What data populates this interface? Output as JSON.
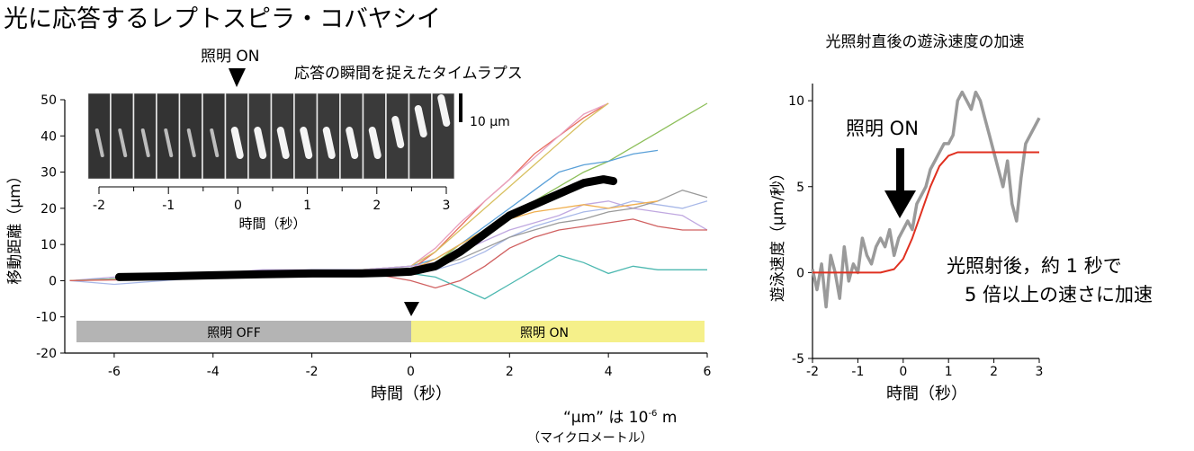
{
  "page": {
    "title": "光に応答するレプトスピラ・コバヤシイ",
    "unit_note": "“μm” は 10",
    "unit_note_exp": "-6",
    "unit_note_suffix": " m",
    "unit_note_reading": "（マイクロメートル）"
  },
  "chart_data": [
    {
      "type": "line",
      "panel": "left",
      "title": "",
      "xlabel": "時間（秒）",
      "ylabel": "移動距離（μm）",
      "xlim": [
        -7,
        6
      ],
      "ylim": [
        -20,
        50
      ],
      "xticks": [
        "-6",
        "-4",
        "-2",
        "0",
        "2",
        "4",
        "6"
      ],
      "yticks": [
        "-20",
        "-10",
        "0",
        "10",
        "20",
        "30",
        "40",
        "50"
      ],
      "grid": false,
      "annotations": {
        "off_bar_label": "照明 OFF",
        "on_bar_label": "照明 ON",
        "light_on_marker_label": "照明 ON",
        "timelapse_caption": "応答の瞬間を捉えたタイムラプス",
        "timelapse_scalebar": "10 μm",
        "timelapse_xlabel": "時間（秒）",
        "timelapse_ticks": [
          "-2",
          "-1",
          "0",
          "1",
          "2",
          "3"
        ]
      },
      "mean_series": {
        "color": "#000000",
        "x": [
          -5.9,
          -5,
          -4,
          -3,
          -2,
          -1,
          -0.5,
          0,
          0.5,
          1,
          1.5,
          2,
          2.5,
          3,
          3.5,
          3.9,
          4.1
        ],
        "y": [
          1,
          1.2,
          1.5,
          1.8,
          2,
          2,
          2.2,
          2.5,
          4,
          8,
          13,
          18,
          21,
          24,
          27,
          28,
          27.5
        ]
      },
      "series": [
        {
          "color": "#8dbf5a",
          "x": [
            -6.9,
            -6,
            -5,
            -4,
            -3,
            -2,
            -1,
            0,
            0.5,
            1,
            1.5,
            2,
            2.5,
            3,
            3.5,
            4,
            4.5,
            5,
            5.5,
            6
          ],
          "y": [
            0,
            0.5,
            1,
            1,
            1.5,
            2,
            2,
            3,
            5,
            10,
            14,
            18,
            22,
            26,
            30,
            33,
            37,
            41,
            45,
            49
          ]
        },
        {
          "color": "#5aa0d8",
          "x": [
            -6.9,
            -6,
            -5,
            -4,
            -3,
            -2,
            -1,
            0,
            0.5,
            1,
            1.5,
            2,
            2.5,
            3,
            3.5,
            4,
            4.5,
            5
          ],
          "y": [
            0,
            0.5,
            1,
            2,
            2.5,
            3,
            3,
            4,
            6,
            10,
            15,
            20,
            25,
            30,
            32,
            33,
            35,
            36
          ]
        },
        {
          "color": "#e87060",
          "x": [
            -6.9,
            -6,
            -5,
            -4,
            -3,
            -2,
            -1,
            0,
            0.5,
            1,
            1.5,
            2,
            2.5,
            3,
            3.5,
            4
          ],
          "y": [
            0,
            0.3,
            0.5,
            1,
            1.5,
            1.5,
            2,
            3,
            8,
            15,
            22,
            28,
            35,
            40,
            45,
            49
          ]
        },
        {
          "color": "#e8a0c0",
          "x": [
            -6.9,
            -6,
            -5,
            -4,
            -3,
            -2,
            -1,
            0,
            0.5,
            1,
            1.5,
            2,
            2.5,
            3,
            3.5,
            4
          ],
          "y": [
            0,
            0.5,
            1,
            1.5,
            2,
            2.5,
            3,
            4,
            9,
            16,
            22,
            28,
            34,
            40,
            46,
            49
          ]
        },
        {
          "color": "#d8c060",
          "x": [
            -6.9,
            -6,
            -5,
            -4,
            -3,
            -2,
            -1,
            0,
            0.5,
            1,
            1.5,
            2,
            2.5,
            3,
            3.5,
            4
          ],
          "y": [
            0,
            0.5,
            1,
            1,
            2,
            2.5,
            3,
            4,
            8,
            14,
            20,
            26,
            32,
            38,
            44,
            49
          ]
        },
        {
          "color": "#c0a8e0",
          "x": [
            -6.9,
            -6,
            -5,
            -4,
            -3,
            -2,
            -1,
            0,
            0.5,
            1,
            1.5,
            2,
            2.5,
            3,
            3.5,
            4,
            4.5,
            5,
            5.5,
            6
          ],
          "y": [
            0,
            1,
            2,
            2,
            3,
            3,
            3,
            4,
            5,
            8,
            11,
            14,
            16,
            18,
            21,
            22,
            20,
            19,
            18,
            14
          ]
        },
        {
          "color": "#a8b8e8",
          "x": [
            -6.9,
            -6,
            -5,
            -4,
            -3,
            -2,
            -1,
            0,
            0.5,
            1,
            1.5,
            2,
            2.5,
            3,
            3.5,
            4,
            4.5,
            5,
            5.5,
            6
          ],
          "y": [
            0,
            -1,
            0,
            1,
            1,
            2,
            2,
            3,
            3,
            5,
            8,
            12,
            15,
            17,
            19,
            20,
            22,
            21,
            20,
            22
          ]
        },
        {
          "color": "#9a9a9a",
          "x": [
            -6.9,
            -6,
            -5,
            -4,
            -3,
            -2,
            -1,
            0,
            0.5,
            1,
            1.5,
            2,
            2.5,
            3,
            3.5,
            4,
            4.5,
            5,
            5.5,
            6
          ],
          "y": [
            0,
            0.5,
            1,
            1.5,
            2,
            2,
            3,
            3,
            4,
            6,
            9,
            12,
            14,
            16,
            17,
            19,
            20,
            22,
            25,
            23
          ]
        },
        {
          "color": "#4cb8b0",
          "x": [
            -6.9,
            -6,
            -5,
            -4,
            -3,
            -2,
            -1,
            0,
            0.5,
            1,
            1.5,
            2,
            2.5,
            3,
            3.5,
            4,
            4.5,
            5,
            5.5,
            6
          ],
          "y": [
            0,
            0.5,
            0.5,
            1,
            1.5,
            2,
            2,
            2,
            1,
            -2,
            -5,
            -1,
            3,
            7,
            5,
            2,
            4,
            3,
            3,
            3
          ]
        },
        {
          "color": "#f0b050",
          "x": [
            -6.9,
            -6,
            -5,
            -4,
            -3,
            -2,
            -1,
            0,
            0.5,
            1,
            1.5,
            2,
            2.5,
            3,
            3.5,
            4,
            4.5,
            5
          ],
          "y": [
            0,
            0.3,
            0.8,
            1.2,
            1.8,
            2,
            2.5,
            3,
            6,
            10,
            14,
            17,
            19,
            20,
            21,
            20,
            21,
            22
          ]
        },
        {
          "color": "#d06060",
          "x": [
            -6.9,
            -6,
            -5,
            -4,
            -3,
            -2,
            -1,
            0,
            0.5,
            1,
            1.5,
            2,
            2.5,
            3,
            3.5,
            4,
            4.5,
            5,
            5.5,
            6
          ],
          "y": [
            0,
            0.2,
            0.5,
            1,
            1.5,
            2,
            2.5,
            0,
            -2,
            0,
            4,
            9,
            12,
            14,
            15,
            16,
            17,
            15,
            14,
            14
          ]
        }
      ]
    },
    {
      "type": "line",
      "panel": "right",
      "title": "光照射直後の遊泳速度の加速",
      "xlabel": "時間（秒）",
      "ylabel": "遊泳速度（μm/秒）",
      "xlim": [
        -2,
        3
      ],
      "ylim": [
        -5,
        11
      ],
      "xticks": [
        "-2",
        "-1",
        "0",
        "1",
        "2",
        "3"
      ],
      "yticks": [
        "-5",
        "0",
        "5",
        "10"
      ],
      "grid": false,
      "annotations": {
        "light_on_label": "照明 ON",
        "note_line1": "光照射後，約 1 秒で",
        "note_line2": "5 倍以上の速さに加速"
      },
      "series": [
        {
          "name": "",
          "color": "#9a9a9a",
          "x": [
            -2,
            -1.9,
            -1.8,
            -1.7,
            -1.6,
            -1.5,
            -1.4,
            -1.3,
            -1.2,
            -1.1,
            -1,
            -0.9,
            -0.8,
            -0.7,
            -0.6,
            -0.5,
            -0.4,
            -0.3,
            -0.2,
            -0.1,
            0,
            0.1,
            0.2,
            0.3,
            0.4,
            0.5,
            0.6,
            0.7,
            0.8,
            0.9,
            1,
            1.1,
            1.2,
            1.3,
            1.4,
            1.5,
            1.6,
            1.7,
            1.8,
            1.9,
            2,
            2.1,
            2.2,
            2.3,
            2.4,
            2.5,
            2.6,
            2.7,
            2.8,
            2.9,
            3
          ],
          "y": [
            0.2,
            -1,
            0.5,
            -2,
            1,
            0,
            -1.5,
            1.5,
            -0.5,
            0.5,
            0,
            2,
            1,
            0.5,
            1.5,
            2,
            1.5,
            2.5,
            1,
            2,
            2.5,
            3,
            2.5,
            4,
            4.5,
            5,
            6,
            6.5,
            7,
            7.5,
            7.5,
            8,
            10,
            10.5,
            10,
            9.5,
            10.5,
            10,
            9,
            8,
            7,
            6,
            5,
            6.5,
            4,
            3,
            5.5,
            7.5,
            8,
            8.5,
            9
          ]
        },
        {
          "name": "",
          "color": "#e03020",
          "x": [
            -2,
            -1.5,
            -1,
            -0.5,
            -0.2,
            0,
            0.2,
            0.4,
            0.6,
            0.8,
            1,
            1.2,
            1.5,
            2,
            2.5,
            3
          ],
          "y": [
            0,
            0,
            0,
            0,
            0.2,
            0.8,
            2,
            3.5,
            5,
            6.2,
            6.8,
            7,
            7,
            7,
            7,
            7
          ]
        }
      ]
    }
  ]
}
